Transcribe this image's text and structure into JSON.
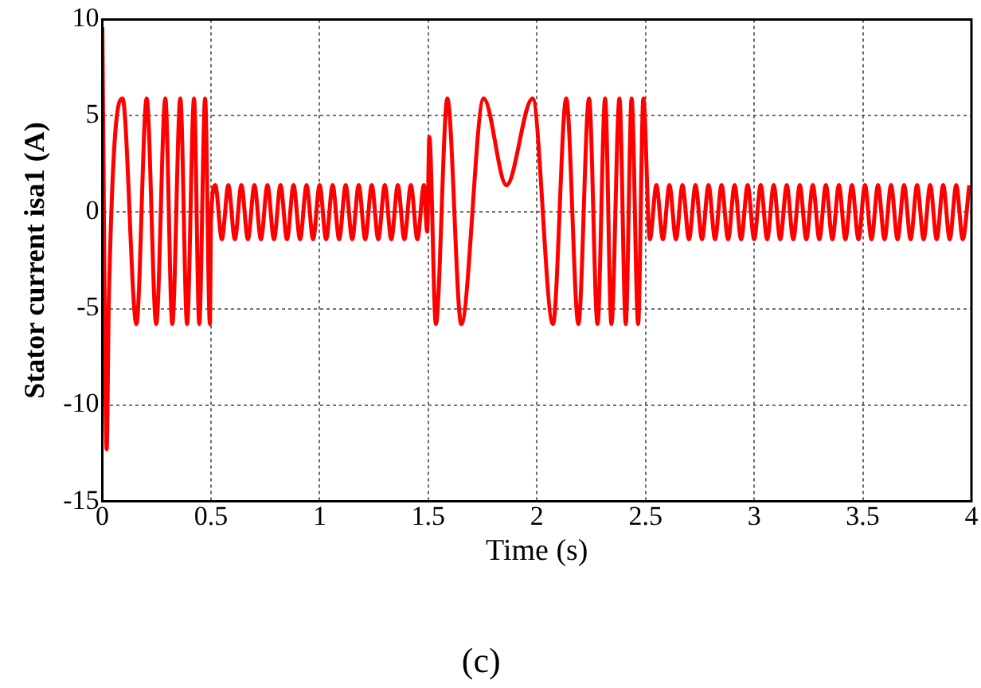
{
  "chart_data": {
    "type": "line",
    "xlabel": "Time (s)",
    "ylabel": "Stator current isa1 (A)",
    "annotations": [
      "(c)"
    ],
    "x": [
      0,
      0.02,
      0.03,
      0.093,
      0.157,
      0.204,
      0.248,
      0.29,
      0.322,
      0.359,
      0.39,
      0.422,
      0.446,
      0.473,
      0.495,
      0.5,
      0.52,
      0.55,
      0.58,
      0.61,
      0.64,
      0.67,
      0.7,
      0.73,
      0.76,
      0.79,
      0.82,
      0.85,
      0.88,
      0.91,
      0.94,
      0.97,
      1.0,
      1.03,
      1.06,
      1.09,
      1.12,
      1.15,
      1.18,
      1.21,
      1.24,
      1.27,
      1.3,
      1.33,
      1.36,
      1.39,
      1.42,
      1.45,
      1.48,
      1.495,
      1.505,
      1.535,
      1.588,
      1.652,
      1.755,
      1.86,
      1.98,
      2.074,
      2.135,
      2.191,
      2.24,
      2.279,
      2.314,
      2.343,
      2.38,
      2.409,
      2.436,
      2.466,
      2.49,
      2.52,
      2.55,
      2.58,
      2.61,
      2.64,
      2.67,
      2.7,
      2.73,
      2.76,
      2.79,
      2.82,
      2.85,
      2.88,
      2.91,
      2.94,
      2.97,
      3.0,
      3.03,
      3.06,
      3.09,
      3.12,
      3.15,
      3.18,
      3.21,
      3.24,
      3.27,
      3.3,
      3.33,
      3.36,
      3.39,
      3.42,
      3.45,
      3.48,
      3.51,
      3.54,
      3.57,
      3.6,
      3.63,
      3.66,
      3.69,
      3.72,
      3.75,
      3.78,
      3.81,
      3.84,
      3.87,
      3.9,
      3.93,
      3.96,
      3.99
    ],
    "series": [
      {
        "color": "#ff0000",
        "values": [
          9.6,
          -12.3,
          -4.5,
          5.9,
          -5.8,
          5.9,
          -5.8,
          5.9,
          -5.8,
          5.9,
          -5.8,
          5.9,
          -5.8,
          5.9,
          -5.8,
          -0.4,
          1.4,
          -1.4,
          1.4,
          -1.4,
          1.4,
          -1.4,
          1.4,
          -1.4,
          1.4,
          -1.4,
          1.4,
          -1.4,
          1.4,
          -1.4,
          1.4,
          -1.4,
          1.4,
          -1.4,
          1.4,
          -1.4,
          1.4,
          -1.4,
          1.4,
          -1.4,
          1.4,
          -1.4,
          1.4,
          -1.4,
          1.4,
          -1.4,
          1.4,
          -1.4,
          1.4,
          -1.0,
          3.9,
          -5.8,
          5.9,
          -5.8,
          5.9,
          1.4,
          5.9,
          -5.8,
          5.9,
          -5.8,
          5.9,
          -5.8,
          5.9,
          -5.8,
          5.9,
          -5.8,
          5.9,
          -5.8,
          5.9,
          -1.4,
          1.4,
          -1.4,
          1.4,
          -1.4,
          1.4,
          -1.4,
          1.4,
          -1.4,
          1.4,
          -1.4,
          1.4,
          -1.4,
          1.4,
          -1.4,
          1.4,
          -1.4,
          1.4,
          -1.4,
          1.4,
          -1.4,
          1.4,
          -1.4,
          1.4,
          -1.4,
          1.4,
          -1.4,
          1.4,
          -1.4,
          1.4,
          -1.4,
          1.4,
          -1.4,
          1.4,
          -1.4,
          1.4,
          -1.4,
          1.4,
          -1.4,
          1.4,
          -1.4,
          1.4,
          -1.4,
          1.4,
          -1.4,
          1.4,
          -1.4,
          1.4,
          -1.4,
          1.4
        ]
      }
    ],
    "xlim": [
      0,
      4
    ],
    "ylim": [
      -15,
      10
    ],
    "xticks": [
      0,
      0.5,
      1,
      1.5,
      2,
      2.5,
      3,
      3.5,
      4
    ],
    "yticks": [
      -15,
      -10,
      -5,
      0,
      5,
      10
    ],
    "grid": true,
    "legend": false,
    "marker": "none"
  }
}
